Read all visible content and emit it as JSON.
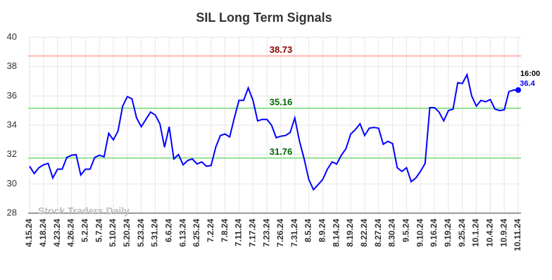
{
  "chart_data": {
    "type": "line",
    "title": "SIL Long Term Signals",
    "categories": [
      "4.15.24",
      null,
      null,
      "4.18.24",
      null,
      null,
      "4.23.24",
      null,
      null,
      "4.26.24",
      null,
      null,
      "5.2.24",
      null,
      null,
      "5.7.24",
      null,
      null,
      "5.10.24",
      null,
      null,
      "5.20.24",
      null,
      null,
      "5.23.24",
      null,
      null,
      "5.31.24",
      null,
      null,
      "6.6.24",
      null,
      null,
      "6.13.24",
      null,
      null,
      "6.25.24",
      null,
      null,
      "7.2.24",
      null,
      null,
      "7.8.24",
      null,
      null,
      "7.11.24",
      null,
      null,
      "7.17.24",
      null,
      null,
      "7.23.24",
      null,
      null,
      "7.26.24",
      null,
      null,
      "7.31.24",
      null,
      null,
      "8.5.24",
      null,
      null,
      "8.9.24",
      null,
      null,
      "8.14.24",
      null,
      null,
      "8.19.24",
      null,
      null,
      "8.22.24",
      null,
      null,
      "8.27.24",
      null,
      null,
      "8.30.24",
      null,
      null,
      "9.5.24",
      null,
      null,
      "9.10.24",
      null,
      null,
      "9.16.24",
      null,
      null,
      "9.19.24",
      null,
      null,
      "9.25.24",
      null,
      null,
      "10.1.24",
      null,
      null,
      "10.4.24",
      null,
      null,
      "10.9.24",
      null,
      null,
      "10.11.24"
    ],
    "values": [
      31.2,
      30.7,
      31.1,
      31.3,
      31.4,
      30.4,
      31.0,
      31.0,
      31.8,
      31.95,
      32.0,
      30.6,
      31.0,
      31.0,
      31.8,
      31.95,
      31.85,
      33.45,
      33.0,
      33.6,
      35.3,
      35.95,
      35.8,
      34.5,
      33.9,
      34.4,
      34.9,
      34.7,
      34.1,
      32.5,
      33.9,
      31.7,
      32.0,
      31.3,
      31.6,
      31.7,
      31.35,
      31.5,
      31.2,
      31.25,
      32.5,
      33.3,
      33.4,
      33.2,
      34.5,
      35.7,
      35.7,
      36.55,
      35.7,
      34.3,
      34.4,
      34.4,
      34.0,
      33.15,
      33.25,
      33.3,
      33.5,
      34.5,
      32.9,
      31.7,
      30.3,
      29.6,
      29.95,
      30.3,
      31.0,
      31.5,
      31.35,
      31.95,
      32.4,
      33.4,
      33.7,
      34.1,
      33.3,
      33.8,
      33.85,
      33.8,
      32.7,
      32.9,
      32.75,
      31.1,
      30.85,
      31.1,
      30.15,
      30.4,
      30.85,
      31.4,
      35.2,
      35.2,
      34.9,
      34.3,
      35.0,
      35.1,
      36.9,
      36.85,
      37.45,
      36.0,
      35.3,
      35.7,
      35.6,
      35.75,
      35.1,
      35.0,
      35.05,
      36.3,
      36.4,
      36.4
    ],
    "color": "#0000ff",
    "ylim": [
      28,
      40
    ],
    "yticks": [
      28,
      30,
      32,
      34,
      36,
      38,
      40
    ],
    "grid": true,
    "reference_lines": [
      {
        "value": 38.73,
        "color": "#ffb3b3",
        "label_color": "#8b0000"
      },
      {
        "value": 35.16,
        "color": "#90e090",
        "label_color": "#006400"
      },
      {
        "value": 31.76,
        "color": "#90e090",
        "label_color": "#006400"
      }
    ],
    "last_point_label": "16:00",
    "watermark": "Stock Traders Daily"
  }
}
